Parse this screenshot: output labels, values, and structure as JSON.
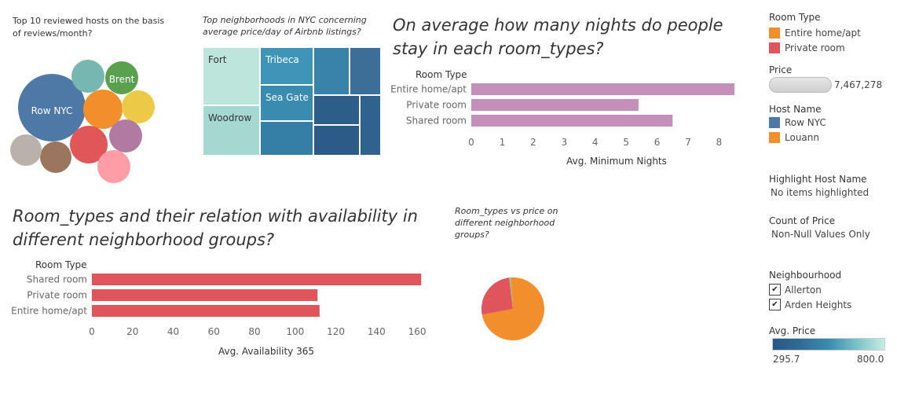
{
  "bubble": {
    "title": "Top 10 reviewed hosts on the basis of reviews/month?",
    "labels": {
      "row_nyc": "Row NYC",
      "brent": "Brent"
    }
  },
  "treemap": {
    "title": "Top neighborhoods in NYC concerning average price/day of Airbnb listings?",
    "labels": {
      "fort": "Fort",
      "woodrow": "Woodrow",
      "tribeca": "Tribeca",
      "sea_gate": "Sea Gate"
    }
  },
  "nights": {
    "title": "On average how many nights do people stay in each room_types?",
    "header": "Room Type",
    "axis_title": "Avg. Minimum Nights"
  },
  "availability": {
    "title": "Room_types and their relation with availability in different neighborhood groups?",
    "header": "Room Type",
    "axis_title": "Avg. Availability 365"
  },
  "pie_title": "Room_types vs price on different neighborhood groups?",
  "chart_data": [
    {
      "type": "bar",
      "orientation": "horizontal",
      "categories": [
        "Entire home/apt",
        "Private room",
        "Shared room"
      ],
      "values": [
        8.5,
        5.4,
        6.5
      ],
      "xlim": [
        0,
        8.8
      ],
      "ticks": [
        0,
        1,
        2,
        3,
        4,
        5,
        6,
        7,
        8
      ],
      "xlabel": "Avg. Minimum Nights",
      "color": "#c490b9"
    },
    {
      "type": "bar",
      "orientation": "horizontal",
      "categories": [
        "Shared room",
        "Private room",
        "Entire home/apt"
      ],
      "values": [
        162,
        111,
        112
      ],
      "xlim": [
        0,
        170
      ],
      "ticks": [
        0,
        20,
        40,
        60,
        80,
        100,
        120,
        140,
        160
      ],
      "xlabel": "Avg. Availability 365",
      "color": "#e0555b"
    },
    {
      "type": "pie",
      "slices": [
        {
          "category": "Entire home/apt",
          "value": 73,
          "color": "#f28e2b"
        },
        {
          "category": "Private room",
          "value": 26,
          "color": "#e0555b"
        },
        {
          "category": "Shared room",
          "value": 1,
          "color": "#a8b478"
        }
      ]
    }
  ],
  "legends": {
    "room_type": {
      "title": "Room Type",
      "items": [
        {
          "label": "Entire home/apt",
          "color": "#f28e2b"
        },
        {
          "label": "Private room",
          "color": "#e0555b"
        }
      ]
    },
    "price": {
      "title": "Price",
      "value": "7,467,278"
    },
    "host_name": {
      "title": "Host Name",
      "items": [
        {
          "label": "Row NYC",
          "color": "#4e79a7"
        },
        {
          "label": "Louann",
          "color": "#f28e2b"
        }
      ]
    },
    "highlight": {
      "title": "Highlight Host Name",
      "value": "No items highlighted"
    },
    "count_price": {
      "title": "Count of Price",
      "value": "Non-Null Values Only"
    },
    "neighbourhood": {
      "title": "Neighbourhood",
      "items": [
        {
          "label": "Allerton",
          "checked": true
        },
        {
          "label": "Arden Heights",
          "checked": true
        }
      ]
    },
    "avg_price": {
      "title": "Avg. Price",
      "min": "295.7",
      "max": "800.0"
    }
  }
}
